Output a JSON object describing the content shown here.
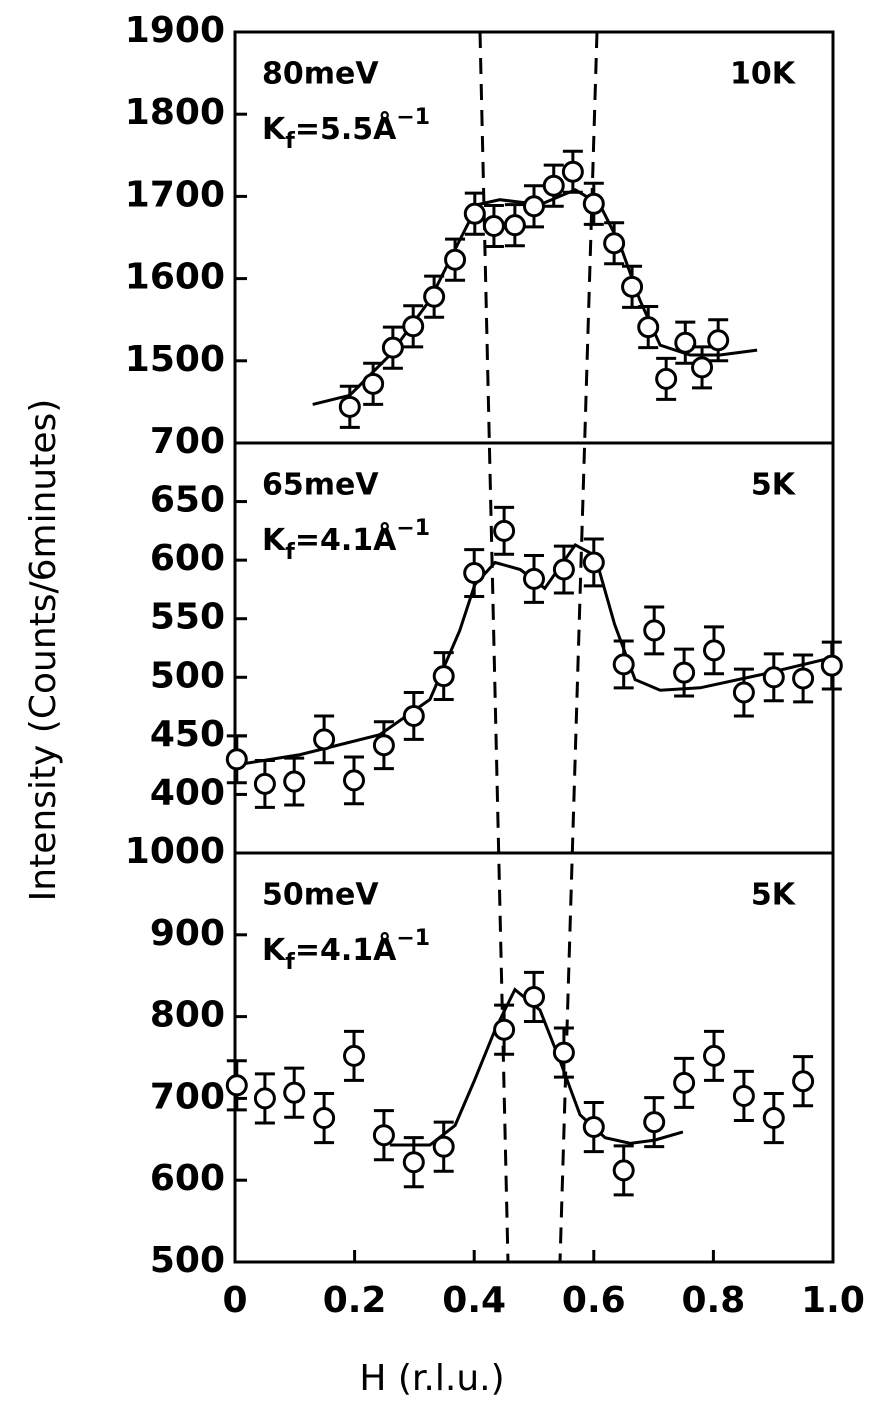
{
  "ylabel": "Intensity (Counts/6minutes)",
  "xlabel": "H (r.l.u.)",
  "chart_data": [
    {
      "type": "scatter",
      "color": "#000000",
      "energy": "80meV",
      "temperature": "10K",
      "kf_label": {
        "base": "K",
        "sub": "f",
        "mid": "=5.5Å",
        "sup": "−1"
      },
      "xlim": [
        0,
        1
      ],
      "ylim": [
        1400,
        1900
      ],
      "yticks": [
        1500,
        1600,
        1700,
        1800,
        1900
      ],
      "x": [
        0.192,
        0.231,
        0.264,
        0.298,
        0.333,
        0.368,
        0.401,
        0.433,
        0.468,
        0.5,
        0.533,
        0.565,
        0.6,
        0.634,
        0.664,
        0.691,
        0.721,
        0.753,
        0.781,
        0.808
      ],
      "values": [
        1444,
        1472,
        1516,
        1542,
        1578,
        1623,
        1679,
        1664,
        1665,
        1688,
        1713,
        1730,
        1691,
        1643,
        1590,
        1541,
        1478,
        1522,
        1492,
        1525
      ],
      "errors": [
        25,
        25,
        25,
        25,
        25,
        25,
        25,
        25,
        25,
        25,
        25,
        25,
        25,
        25,
        25,
        25,
        25,
        25,
        25,
        25
      ],
      "fit": {
        "x": [
          0.13,
          0.192,
          0.259,
          0.326,
          0.376,
          0.406,
          0.443,
          0.51,
          0.569,
          0.61,
          0.644,
          0.677,
          0.711,
          0.761,
          0.811,
          0.873
        ],
        "values": [
          1447,
          1458,
          1507,
          1574,
          1647,
          1690,
          1696,
          1690,
          1708,
          1690,
          1641,
          1574,
          1519,
          1507,
          1507,
          1513
        ]
      }
    },
    {
      "type": "scatter",
      "color": "#000000",
      "energy": "65meV",
      "temperature": "5K",
      "kf_label": {
        "base": "K",
        "sub": "f",
        "mid": "=4.1Å",
        "sup": "−1"
      },
      "xlim": [
        0,
        1
      ],
      "ylim": [
        350,
        700
      ],
      "yticks": [
        400,
        450,
        500,
        550,
        600,
        650,
        700
      ],
      "x": [
        0.003,
        0.05,
        0.099,
        0.149,
        0.199,
        0.249,
        0.299,
        0.349,
        0.4,
        0.45,
        0.5,
        0.55,
        0.6,
        0.65,
        0.701,
        0.751,
        0.801,
        0.851,
        0.901,
        0.95,
        0.998
      ],
      "values": [
        430,
        409,
        411,
        447,
        412,
        442,
        467,
        501,
        589,
        625,
        584,
        592,
        598,
        511,
        540,
        504,
        523,
        487,
        500,
        499,
        510
      ],
      "errors": [
        20,
        20,
        20,
        20,
        20,
        20,
        20,
        20,
        20,
        20,
        20,
        20,
        20,
        20,
        20,
        20,
        20,
        20,
        20,
        20,
        20
      ],
      "fit": {
        "x": [
          0,
          0.109,
          0.242,
          0.326,
          0.376,
          0.401,
          0.435,
          0.477,
          0.518,
          0.569,
          0.602,
          0.635,
          0.669,
          0.711,
          0.778,
          0.878,
          1.0
        ],
        "values": [
          425,
          434,
          451,
          481,
          540,
          579,
          598,
          592,
          576,
          613,
          604,
          545,
          498,
          489,
          491,
          502,
          517
        ]
      }
    },
    {
      "type": "scatter",
      "color": "#000000",
      "energy": "50meV",
      "temperature": "5K",
      "kf_label": {
        "base": "K",
        "sub": "f",
        "mid": "=4.1Å",
        "sup": "−1"
      },
      "xlim": [
        0,
        1
      ],
      "ylim": [
        500,
        1000
      ],
      "yticks": [
        500,
        600,
        700,
        800,
        900,
        1000
      ],
      "xticks": [
        0,
        0.2,
        0.4,
        0.6,
        0.8,
        {
          "value": 1,
          "label": "1.0"
        }
      ],
      "x": [
        0.003,
        0.05,
        0.099,
        0.149,
        0.199,
        0.249,
        0.299,
        0.349,
        0.45,
        0.5,
        0.55,
        0.6,
        0.65,
        0.701,
        0.751,
        0.801,
        0.851,
        0.901,
        0.95
      ],
      "values": [
        716,
        700,
        707,
        676,
        752,
        655,
        622,
        641,
        784,
        824,
        756,
        665,
        612,
        671,
        719,
        752,
        703,
        676,
        721
      ],
      "errors": [
        30,
        30,
        30,
        30,
        30,
        30,
        30,
        30,
        30,
        30,
        30,
        30,
        30,
        30,
        30,
        30,
        30,
        30,
        30
      ],
      "fit": {
        "x": [
          0.259,
          0.326,
          0.368,
          0.401,
          0.435,
          0.468,
          0.51,
          0.543,
          0.577,
          0.619,
          0.661,
          0.702,
          0.749
        ],
        "values": [
          643,
          643,
          667,
          723,
          784,
          833,
          808,
          747,
          680,
          652,
          645,
          649,
          659
        ]
      }
    }
  ]
}
